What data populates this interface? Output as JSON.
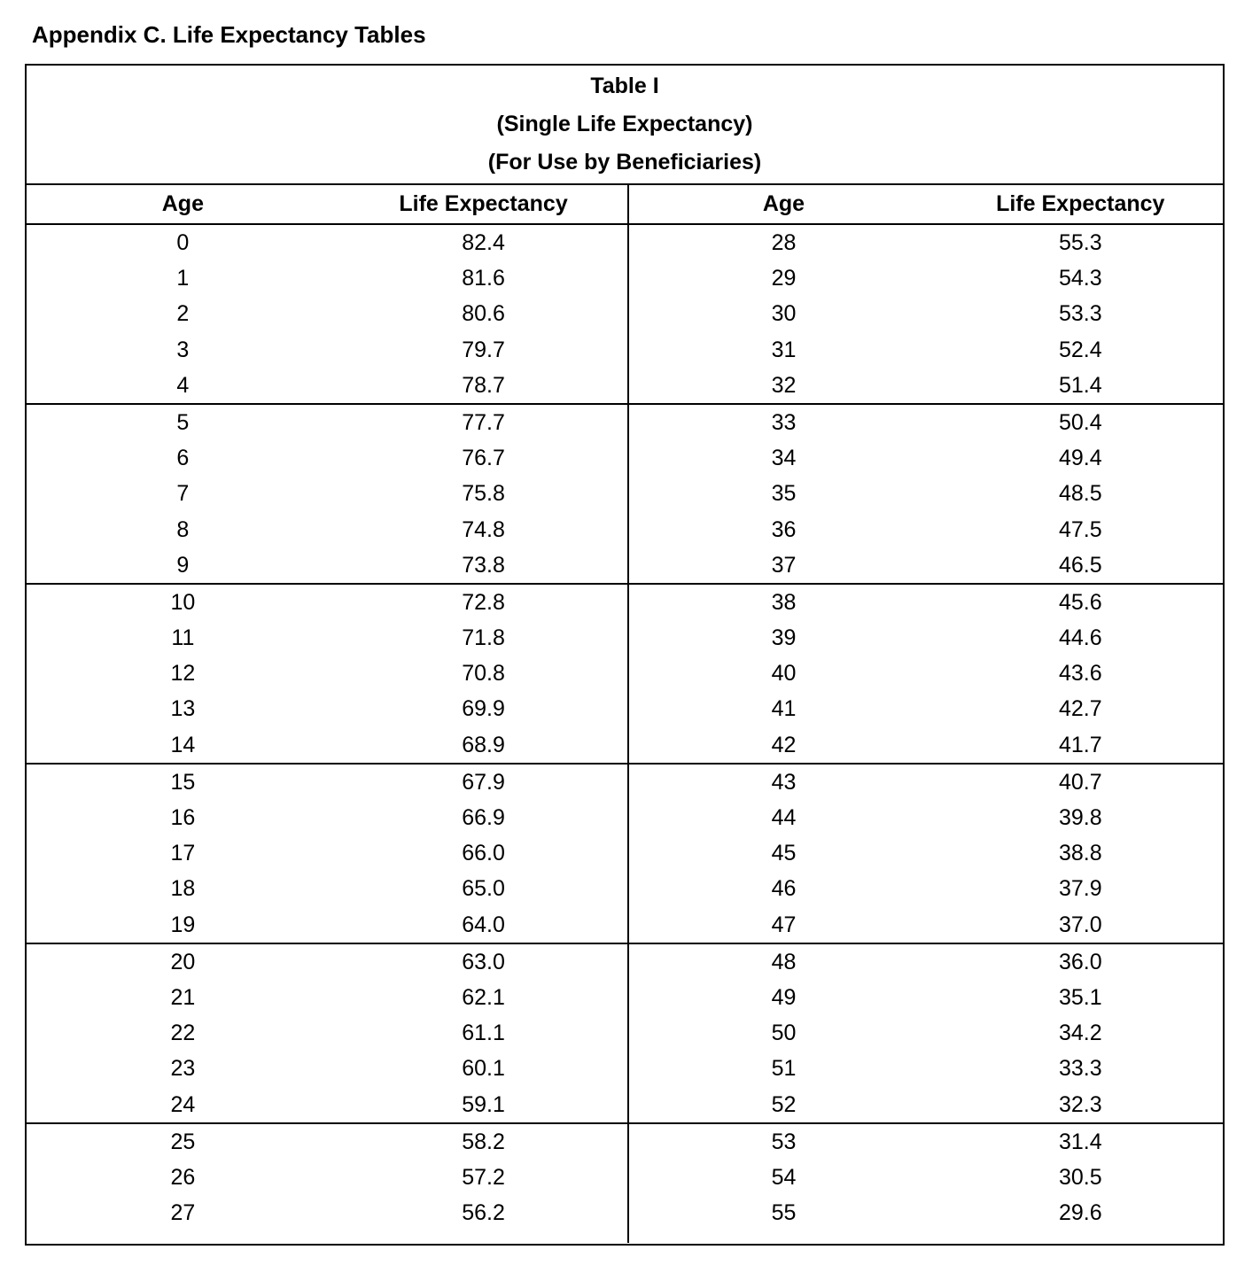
{
  "page_title": "Appendix C. Life Expectancy Tables",
  "table": {
    "title_lines": [
      "Table I",
      "(Single Life Expectancy)",
      "(For Use by Beneficiaries)"
    ],
    "headers": {
      "left": [
        "Age",
        "Life Expectancy"
      ],
      "right": [
        "Age",
        "Life Expectancy"
      ]
    },
    "groups": [
      {
        "left": [
          [
            "0",
            "82.4"
          ],
          [
            "1",
            "81.6"
          ],
          [
            "2",
            "80.6"
          ],
          [
            "3",
            "79.7"
          ],
          [
            "4",
            "78.7"
          ]
        ],
        "right": [
          [
            "28",
            "55.3"
          ],
          [
            "29",
            "54.3"
          ],
          [
            "30",
            "53.3"
          ],
          [
            "31",
            "52.4"
          ],
          [
            "32",
            "51.4"
          ]
        ]
      },
      {
        "left": [
          [
            "5",
            "77.7"
          ],
          [
            "6",
            "76.7"
          ],
          [
            "7",
            "75.8"
          ],
          [
            "8",
            "74.8"
          ],
          [
            "9",
            "73.8"
          ]
        ],
        "right": [
          [
            "33",
            "50.4"
          ],
          [
            "34",
            "49.4"
          ],
          [
            "35",
            "48.5"
          ],
          [
            "36",
            "47.5"
          ],
          [
            "37",
            "46.5"
          ]
        ]
      },
      {
        "left": [
          [
            "10",
            "72.8"
          ],
          [
            "11",
            "71.8"
          ],
          [
            "12",
            "70.8"
          ],
          [
            "13",
            "69.9"
          ],
          [
            "14",
            "68.9"
          ]
        ],
        "right": [
          [
            "38",
            "45.6"
          ],
          [
            "39",
            "44.6"
          ],
          [
            "40",
            "43.6"
          ],
          [
            "41",
            "42.7"
          ],
          [
            "42",
            "41.7"
          ]
        ]
      },
      {
        "left": [
          [
            "15",
            "67.9"
          ],
          [
            "16",
            "66.9"
          ],
          [
            "17",
            "66.0"
          ],
          [
            "18",
            "65.0"
          ],
          [
            "19",
            "64.0"
          ]
        ],
        "right": [
          [
            "43",
            "40.7"
          ],
          [
            "44",
            "39.8"
          ],
          [
            "45",
            "38.8"
          ],
          [
            "46",
            "37.9"
          ],
          [
            "47",
            "37.0"
          ]
        ]
      },
      {
        "left": [
          [
            "20",
            "63.0"
          ],
          [
            "21",
            "62.1"
          ],
          [
            "22",
            "61.1"
          ],
          [
            "23",
            "60.1"
          ],
          [
            "24",
            "59.1"
          ]
        ],
        "right": [
          [
            "48",
            "36.0"
          ],
          [
            "49",
            "35.1"
          ],
          [
            "50",
            "34.2"
          ],
          [
            "51",
            "33.3"
          ],
          [
            "52",
            "32.3"
          ]
        ]
      },
      {
        "left": [
          [
            "25",
            "58.2"
          ],
          [
            "26",
            "57.2"
          ],
          [
            "27",
            "56.2"
          ]
        ],
        "right": [
          [
            "53",
            "31.4"
          ],
          [
            "54",
            "30.5"
          ],
          [
            "55",
            "29.6"
          ]
        ]
      }
    ]
  }
}
